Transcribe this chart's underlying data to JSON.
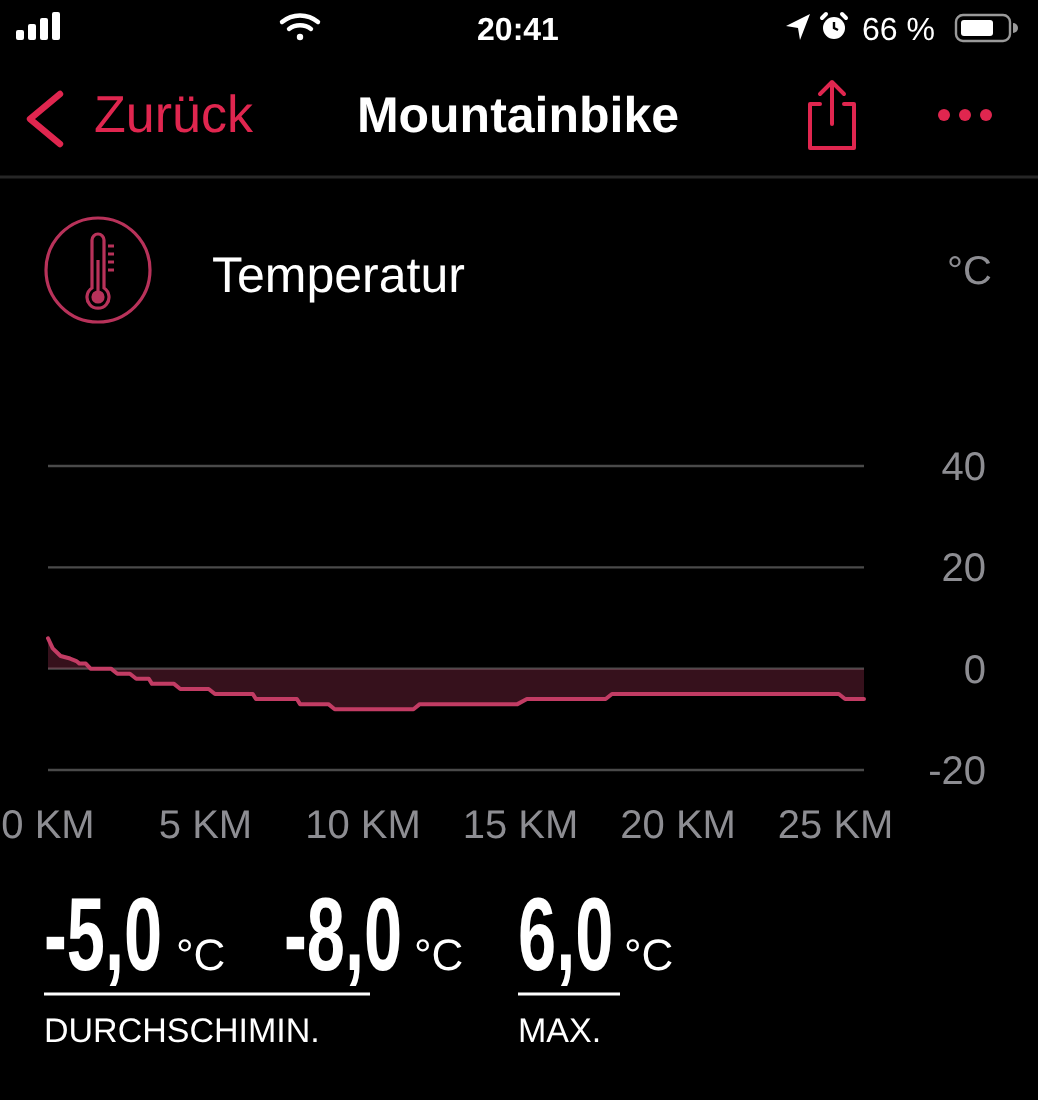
{
  "chart_data": {
    "type": "area",
    "title": "Temperatur",
    "ylabel": "°C",
    "x": [
      0,
      0.15,
      0.4,
      0.7,
      0.9,
      1.0,
      1.2,
      1.35,
      2.0,
      2.2,
      2.6,
      2.8,
      3.2,
      3.3,
      4.0,
      4.2,
      5.1,
      5.3,
      6.5,
      6.6,
      7.9,
      8.0,
      8.9,
      9.1,
      11.6,
      11.8,
      14.9,
      15.2,
      17.7,
      17.9,
      25.1,
      25.3,
      25.9
    ],
    "series": [
      {
        "color": "#c23c64",
        "values": [
          6,
          4,
          2.5,
          2,
          1.5,
          1,
          1,
          0,
          0,
          -1,
          -1,
          -2,
          -2,
          -3,
          -3,
          -4,
          -4,
          -5,
          -5,
          -6,
          -6,
          -7,
          -7,
          -8,
          -8,
          -7,
          -7,
          -6,
          -6,
          -5,
          -5,
          -6,
          -6
        ]
      }
    ],
    "xlim": [
      0,
      25.9
    ],
    "xticks": [
      {
        "value": 0,
        "label": "0 KM"
      },
      {
        "value": 5,
        "label": "5 KM"
      },
      {
        "value": 10,
        "label": "10 KM"
      },
      {
        "value": 15,
        "label": "15 KM"
      },
      {
        "value": 20,
        "label": "20 KM"
      },
      {
        "value": 25,
        "label": "25 KM"
      }
    ],
    "ylim": [
      -20,
      40
    ],
    "yticks": [
      -20,
      0,
      20,
      40
    ],
    "grid": "y",
    "annotations": [
      "20:41",
      "66 %",
      "Zurück",
      "Mountainbike",
      "-5,0",
      "°C",
      "-8,0",
      "°C",
      "6,0",
      "°C",
      "DURCHSCHIMIN.",
      "MAX."
    ]
  }
}
